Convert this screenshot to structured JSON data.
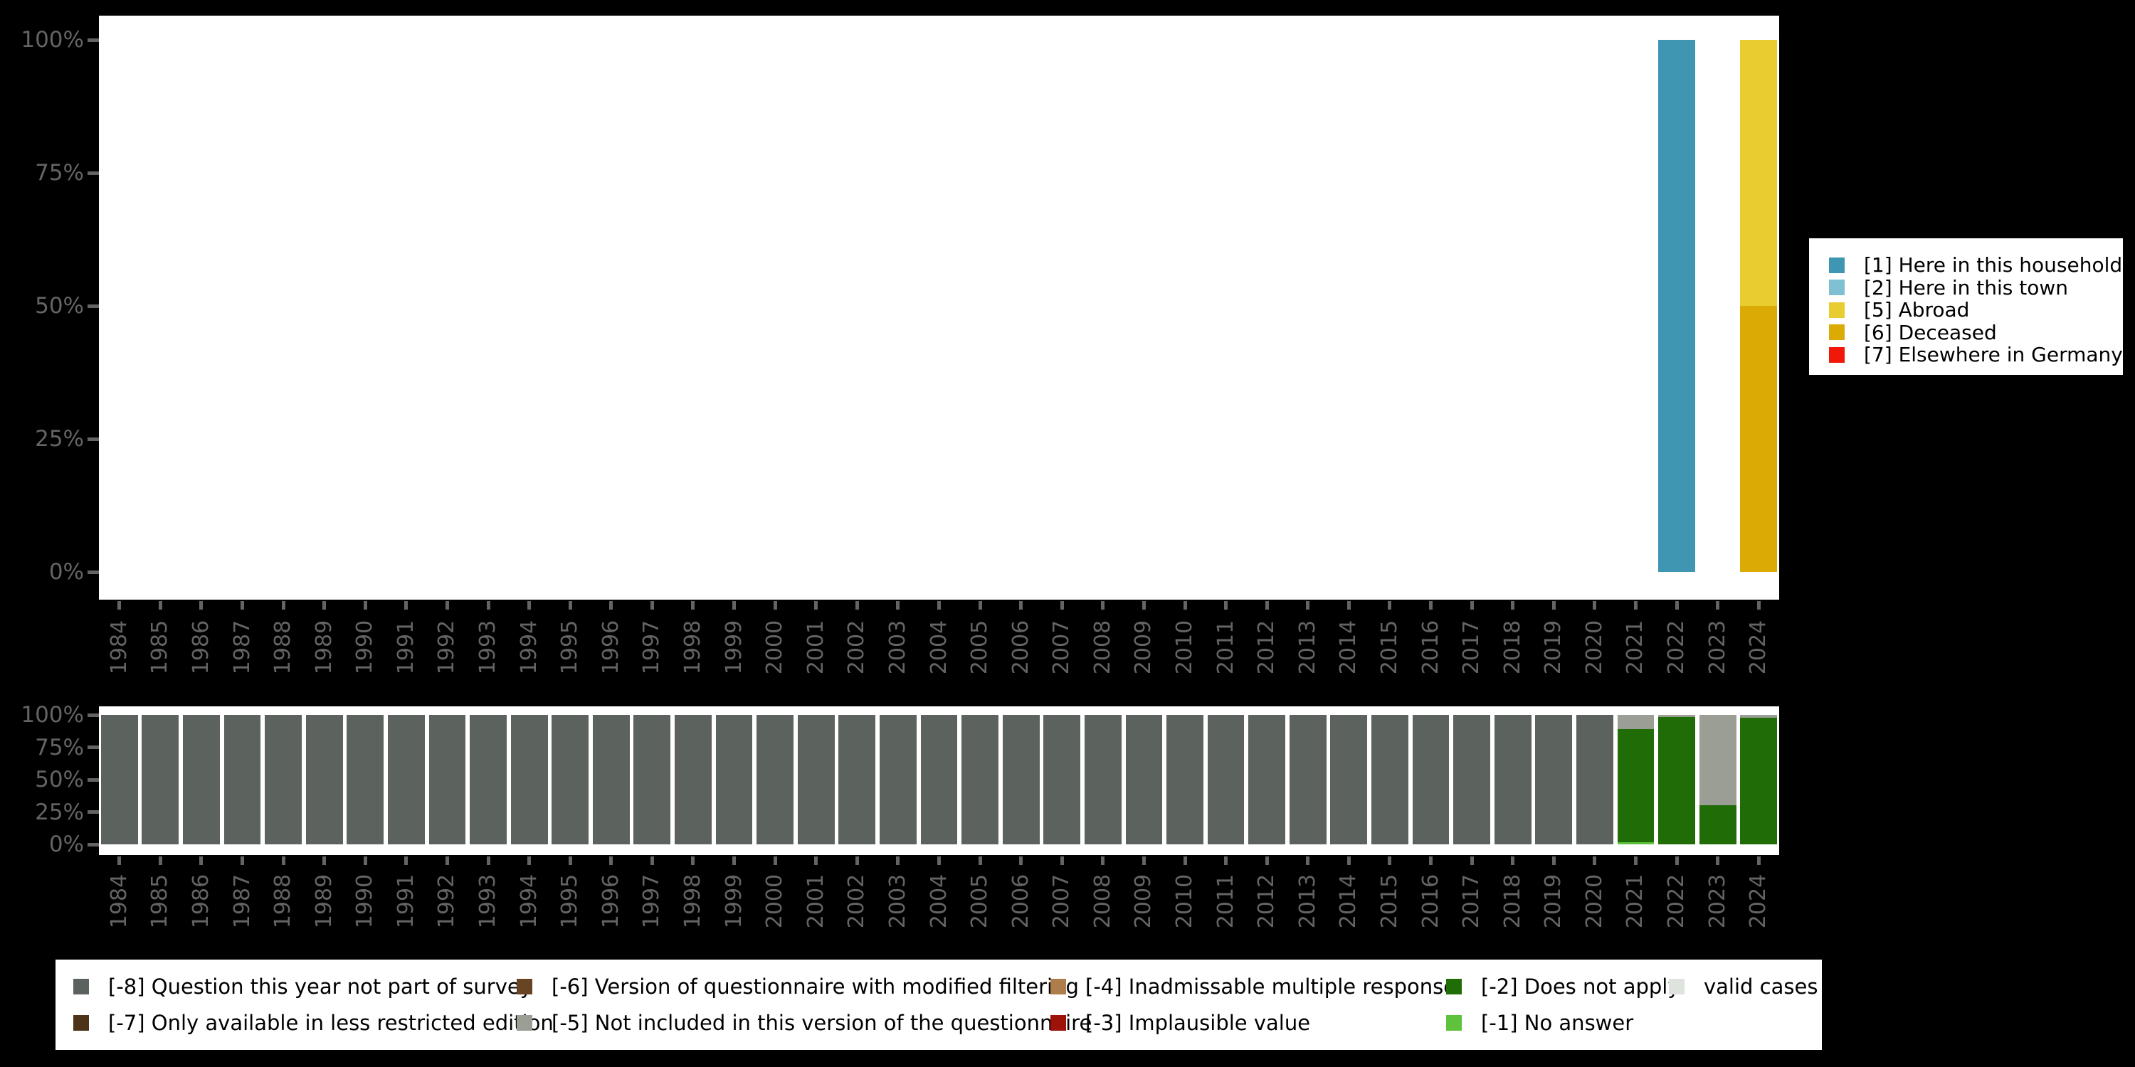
{
  "colors": {
    "background": "#000000",
    "panel": "#ffffff",
    "axis_text": "#646464"
  },
  "axis": {
    "y_ticks": [
      "100%",
      "75%",
      "50%",
      "25%",
      "0%"
    ]
  },
  "chart_data": [
    {
      "id": "values",
      "type": "bar",
      "stacked": true,
      "title": "",
      "xlabel": "",
      "ylabel": "",
      "ylim": [
        0,
        100
      ],
      "grid": false,
      "legend_position": "right",
      "y_ticks": [
        "100%",
        "75%",
        "50%",
        "25%",
        "0%"
      ],
      "categories": [
        "1984",
        "1985",
        "1986",
        "1987",
        "1988",
        "1989",
        "1990",
        "1991",
        "1992",
        "1993",
        "1994",
        "1995",
        "1996",
        "1997",
        "1998",
        "1999",
        "2000",
        "2001",
        "2002",
        "2003",
        "2004",
        "2005",
        "2006",
        "2007",
        "2008",
        "2009",
        "2010",
        "2011",
        "2012",
        "2013",
        "2014",
        "2015",
        "2016",
        "2017",
        "2018",
        "2019",
        "2020",
        "2021",
        "2022",
        "2023",
        "2024"
      ],
      "legend": [
        {
          "code": "1",
          "label": "[1] Here in this household",
          "color": "#3e96b2"
        },
        {
          "code": "2",
          "label": "[2] Here in this town",
          "color": "#80c0d3"
        },
        {
          "code": "5",
          "label": "[5] Abroad",
          "color": "#e9cc30"
        },
        {
          "code": "6",
          "label": "[6] Deceased",
          "color": "#dcaa04"
        },
        {
          "code": "7",
          "label": "[7] Elsewhere in Germany",
          "color": "#f1180a"
        }
      ],
      "bars": {
        "2022": [
          {
            "code": "1",
            "pct": 100
          }
        ],
        "2024": [
          {
            "code": "5",
            "pct": 50
          },
          {
            "code": "6",
            "pct": 50
          }
        ]
      }
    },
    {
      "id": "missings",
      "type": "bar",
      "stacked": true,
      "title": "",
      "xlabel": "",
      "ylabel": "",
      "ylim": [
        0,
        100
      ],
      "grid": false,
      "legend_position": "bottom",
      "y_ticks": [
        "100%",
        "75%",
        "50%",
        "25%",
        "0%"
      ],
      "categories": [
        "1984",
        "1985",
        "1986",
        "1987",
        "1988",
        "1989",
        "1990",
        "1991",
        "1992",
        "1993",
        "1994",
        "1995",
        "1996",
        "1997",
        "1998",
        "1999",
        "2000",
        "2001",
        "2002",
        "2003",
        "2004",
        "2005",
        "2006",
        "2007",
        "2008",
        "2009",
        "2010",
        "2011",
        "2012",
        "2013",
        "2014",
        "2015",
        "2016",
        "2017",
        "2018",
        "2019",
        "2020",
        "2021",
        "2022",
        "2023",
        "2024"
      ],
      "legend": [
        {
          "code": "-8",
          "label": "[-8] Question this year not part of survey",
          "color": "#5c625d"
        },
        {
          "code": "-7",
          "label": "[-7] Only available in less restricted edition",
          "color": "#4d331a"
        },
        {
          "code": "-6",
          "label": "[-6] Version of questionnaire with modified filtering",
          "color": "#684522"
        },
        {
          "code": "-5",
          "label": "[-5] Not included in this version of the questionnaire",
          "color": "#9a9e95"
        },
        {
          "code": "-4",
          "label": "[-4] Inadmissable multiple response",
          "color": "#ad7e4b"
        },
        {
          "code": "-3",
          "label": "[-3] Implausible value",
          "color": "#9e120a"
        },
        {
          "code": "-2",
          "label": "[-2] Does not apply",
          "color": "#206d08"
        },
        {
          "code": "-1",
          "label": "[-1] No answer",
          "color": "#5fc23c"
        },
        {
          "code": "valid",
          "label": "valid cases",
          "color": "#dfe3dd"
        }
      ],
      "bars": {
        "1984": [
          {
            "code": "-8",
            "pct": 100
          }
        ],
        "1985": [
          {
            "code": "-8",
            "pct": 100
          }
        ],
        "1986": [
          {
            "code": "-8",
            "pct": 100
          }
        ],
        "1987": [
          {
            "code": "-8",
            "pct": 100
          }
        ],
        "1988": [
          {
            "code": "-8",
            "pct": 100
          }
        ],
        "1989": [
          {
            "code": "-8",
            "pct": 100
          }
        ],
        "1990": [
          {
            "code": "-8",
            "pct": 100
          }
        ],
        "1991": [
          {
            "code": "-8",
            "pct": 100
          }
        ],
        "1992": [
          {
            "code": "-8",
            "pct": 100
          }
        ],
        "1993": [
          {
            "code": "-8",
            "pct": 100
          }
        ],
        "1994": [
          {
            "code": "-8",
            "pct": 100
          }
        ],
        "1995": [
          {
            "code": "-8",
            "pct": 100
          }
        ],
        "1996": [
          {
            "code": "-8",
            "pct": 100
          }
        ],
        "1997": [
          {
            "code": "-8",
            "pct": 100
          }
        ],
        "1998": [
          {
            "code": "-8",
            "pct": 100
          }
        ],
        "1999": [
          {
            "code": "-8",
            "pct": 100
          }
        ],
        "2000": [
          {
            "code": "-8",
            "pct": 100
          }
        ],
        "2001": [
          {
            "code": "-8",
            "pct": 100
          }
        ],
        "2002": [
          {
            "code": "-8",
            "pct": 100
          }
        ],
        "2003": [
          {
            "code": "-8",
            "pct": 100
          }
        ],
        "2004": [
          {
            "code": "-8",
            "pct": 100
          }
        ],
        "2005": [
          {
            "code": "-8",
            "pct": 100
          }
        ],
        "2006": [
          {
            "code": "-8",
            "pct": 100
          }
        ],
        "2007": [
          {
            "code": "-8",
            "pct": 100
          }
        ],
        "2008": [
          {
            "code": "-8",
            "pct": 100
          }
        ],
        "2009": [
          {
            "code": "-8",
            "pct": 100
          }
        ],
        "2010": [
          {
            "code": "-8",
            "pct": 100
          }
        ],
        "2011": [
          {
            "code": "-8",
            "pct": 100
          }
        ],
        "2012": [
          {
            "code": "-8",
            "pct": 100
          }
        ],
        "2013": [
          {
            "code": "-8",
            "pct": 100
          }
        ],
        "2014": [
          {
            "code": "-8",
            "pct": 100
          }
        ],
        "2015": [
          {
            "code": "-8",
            "pct": 100
          }
        ],
        "2016": [
          {
            "code": "-8",
            "pct": 100
          }
        ],
        "2017": [
          {
            "code": "-8",
            "pct": 100
          }
        ],
        "2018": [
          {
            "code": "-8",
            "pct": 100
          }
        ],
        "2019": [
          {
            "code": "-8",
            "pct": 100
          }
        ],
        "2020": [
          {
            "code": "-8",
            "pct": 100
          }
        ],
        "2021": [
          {
            "code": "-5",
            "pct": 11
          },
          {
            "code": "-2",
            "pct": 87.5
          },
          {
            "code": "-1",
            "pct": 1.5
          }
        ],
        "2022": [
          {
            "code": "-5",
            "pct": 1.5
          },
          {
            "code": "-2",
            "pct": 98.5
          }
        ],
        "2023": [
          {
            "code": "-5",
            "pct": 70
          },
          {
            "code": "-2",
            "pct": 30
          }
        ],
        "2024": [
          {
            "code": "-5",
            "pct": 2
          },
          {
            "code": "-2",
            "pct": 98
          }
        ]
      }
    }
  ]
}
